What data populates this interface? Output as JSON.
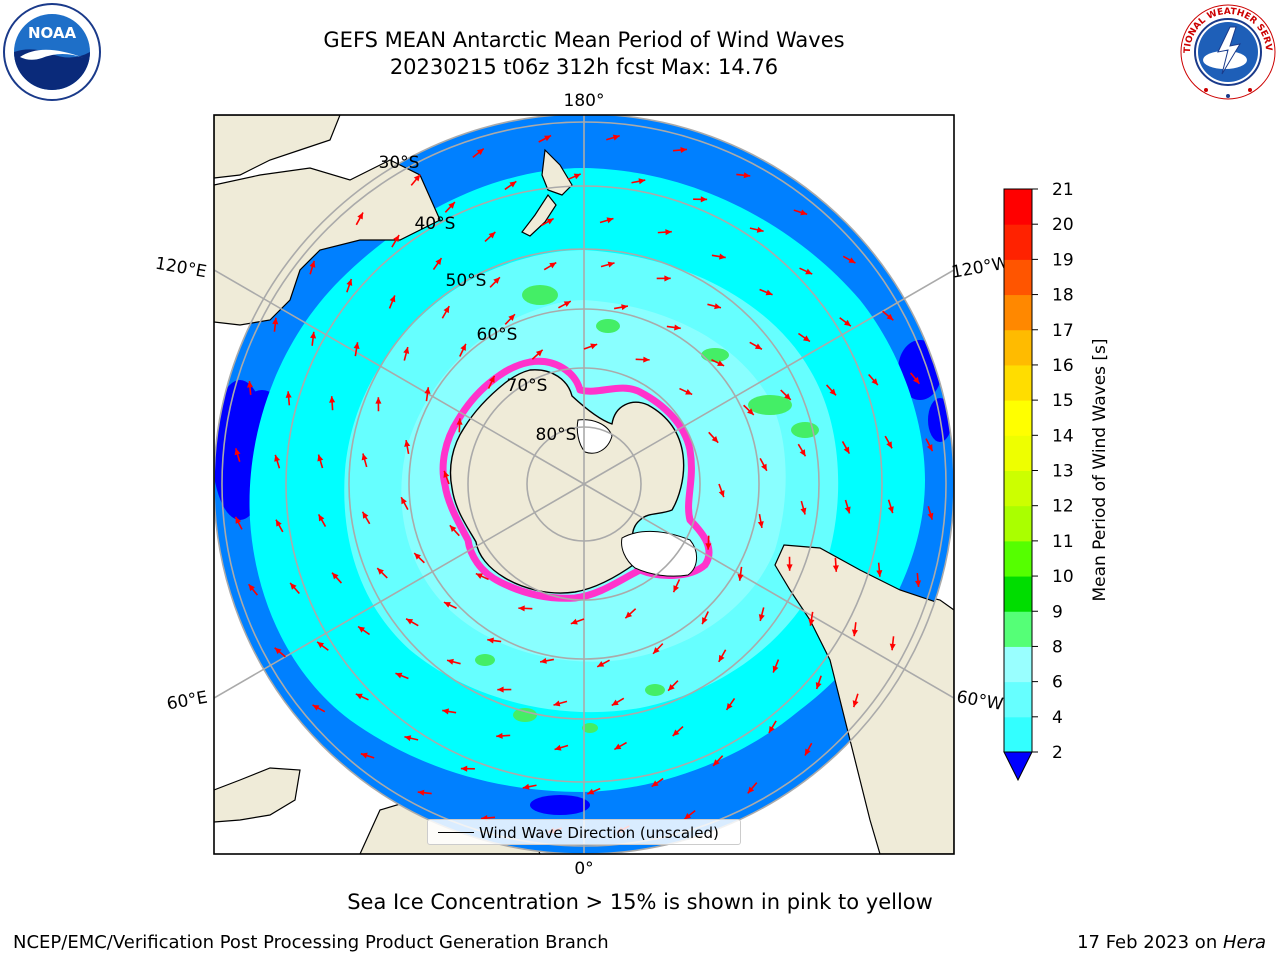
{
  "title": {
    "line1": "GEFS MEAN Antarctic Mean Period of Wind Waves",
    "line2": "20230215 t06z 312h fcst   Max: 14.76"
  },
  "map": {
    "lon_labels": {
      "top": "180°",
      "bottom": "0°",
      "left_upper": "120°E",
      "left_lower": "60°E",
      "right_upper": "120°W",
      "right_lower": "60°W"
    },
    "lat_labels": [
      "30°S",
      "40°S",
      "50°S",
      "60°S",
      "70°S",
      "80°S"
    ],
    "colors": {
      "land": "#efebd8",
      "ice_edge": "#ff33cc",
      "dark_blue": "#0000ff",
      "blue": "#0080ff",
      "cyan": "#00ffff",
      "light_cyan": "#66ffff",
      "green": "#44ee66",
      "arrow": "#ff0000"
    }
  },
  "legend": {
    "label": "Wind Wave Direction (unscaled)"
  },
  "colorbar": {
    "label": "Mean Period of Wind Waves [s]",
    "ticks": [
      "2",
      "4",
      "6",
      "8",
      "9",
      "10",
      "11",
      "12",
      "13",
      "14",
      "15",
      "16",
      "17",
      "18",
      "19",
      "20",
      "21"
    ],
    "colors": [
      "#0080ff",
      "#00ffff",
      "#33ffff",
      "#66ffff",
      "#99ffff",
      "#55ff77",
      "#00dd00",
      "#55ff00",
      "#aaff00",
      "#ccff00",
      "#eeff00",
      "#ffff00",
      "#ffdd00",
      "#ffbb00",
      "#ff8800",
      "#ff5500",
      "#ff2200",
      "#ff0000"
    ],
    "extend_color": "#0000ff"
  },
  "caption": "Sea Ice Concentration > 15% is shown in pink to yellow",
  "footer": {
    "left": "NCEP/EMC/Verification Post Processing Product Generation Branch",
    "right_date": "17 Feb 2023 on ",
    "right_machine": "Hera"
  },
  "logos": {
    "noaa": "NOAA",
    "nws_text": "NATIONAL WEATHER SERVICE"
  }
}
